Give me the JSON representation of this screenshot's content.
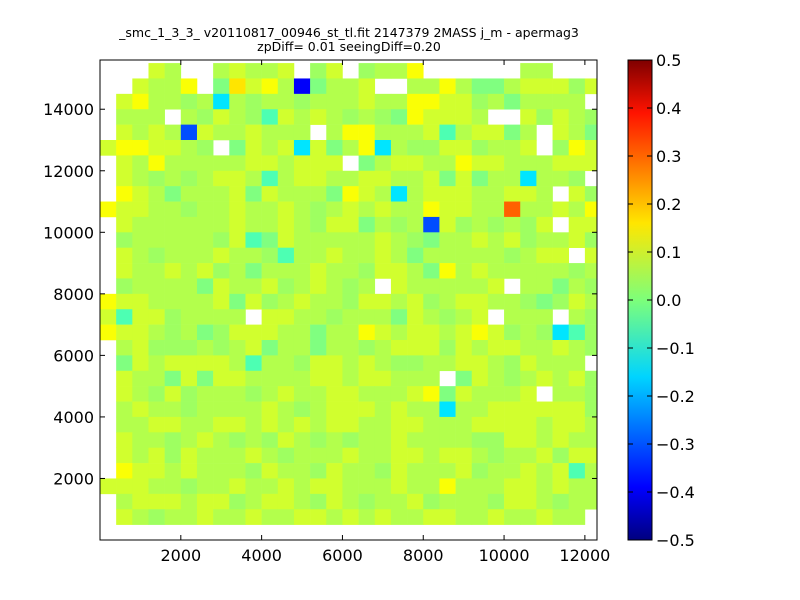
{
  "chart_data": {
    "type": "heatmap",
    "title_lines": [
      "_smc_1_3_3_ v20110817_00946_st_tl.fit 2147379 2MASS j_m - apermag3",
      "zpDiff= 0.01 seeingDiff=0.20"
    ],
    "xlabel": "",
    "ylabel": "",
    "xlim": [
      0,
      12300
    ],
    "ylim": [
      0,
      15600
    ],
    "x_ticks": [
      2000,
      4000,
      6000,
      8000,
      10000,
      12000
    ],
    "y_ticks": [
      2000,
      4000,
      6000,
      8000,
      10000,
      12000,
      14000
    ],
    "colorbar": {
      "colormap": "jet",
      "range": [
        -0.5,
        0.5
      ],
      "ticks": [
        -0.5,
        -0.4,
        -0.3,
        -0.2,
        -0.1,
        0.0,
        0.1,
        0.2,
        0.3,
        0.4,
        0.5
      ],
      "tick_labels": [
        "−0.5",
        "−0.4",
        "−0.3",
        "−0.2",
        "−0.1",
        "0.0",
        "0.1",
        "0.2",
        "0.3",
        "0.4",
        "0.5"
      ]
    },
    "grid": false,
    "bin_width": 400,
    "bin_height": 500,
    "x_start": 0,
    "y_start": 0,
    "grid_rows": [
      "....................................",
      "...hg..ghggh.fh.fggi......gg.....a.",
      "..hggi.eahigjeggh..ggigeeghhhfha.ch.",
      ".higgfgcgfggfggghggiihhfgegggg.jdigf",
      ".ggg.gfhgfdhghgfgfeihhhg..hfhgffj..",
      ".hghgbhgghggg.giiggghdghheg.hgeghh",
      "hiihhgf.ehghchegicgffhhfggh.fihgbhg.",
      ".hgiggggghhghhh.eghhggihhggghhh.fhg",
      ".hgfgfghhgdghhgghhggheheggcggf.bgfj",
      ".ihgeggghehgggeihgcghhhgghhg.hfhfeh",
      "ihhggfgghgghgfghghggihhggkgghgi.ihg",
      ".hgggggghgghgfhhegfgbhfgfgfh.hhgh",
      ".fgggggfhdehggggghgfegghghfgghfh.",
      ".hgfggghggfdgghgghgegggggfghh.hhg",
      ".hgghghfgeggghggfhhgeighgggggfgc",
      ".fggggehgghfghgfg.hgggggh.ggegfhg",
      "ihhgggghehfghggfhhghfghhggfefhgh",
      "hdhhfgggg.hhggfgggehgfgh.ggg.gfh.",
      "ihhgfgefhhhggeggihghhghihfgfcdfgeh",
      ".ghfffgfgheggeggfghhhfhghhgghgfgh",
      ".ehghhhhgdggfhhghgffgghhgfhggg.h",
      ".hggehehhgggghhghhggg.ehgfghghfg",
      ".hgfhfgggfghgghhggghiehgggh.ggfh.",
      ".ghggfgggghgfghhhghggcgghhhhhhfh",
      ".gghhgghhghghghhgghhggghhhhghhgg",
      ".hggfghgfgfhgfgfgghggggffhhghgg.",
      ".hghfhggghgfggghgghhghhgfgghfhhh",
      ".ihhghgggfhggfhggfhggghfgghghdgg",
      "hhhggfgghgghghhggghggiggghhghgg.",
      ".ghhhghhfghhgfhgfgghfgggfhhgfgghg",
      ".hgfgghgghgghhghghgghhgghgghgg.h",
      ".."
    ],
    "palette": {
      "a": 0.15,
      "b": -0.3,
      "c": -0.15,
      "d": -0.05,
      "e": 0.0,
      "f": 0.03,
      "g": 0.05,
      "h": 0.08,
      "i": 0.12,
      "j": -0.38,
      "k": 0.28
    }
  }
}
